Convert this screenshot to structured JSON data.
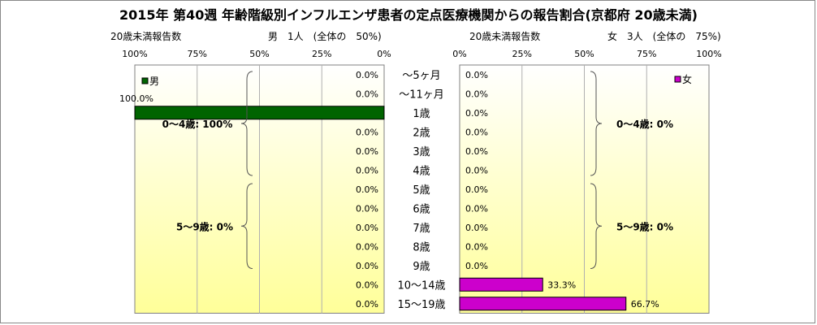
{
  "title": "2015年 第40週 年齢階級別インフルエンザ患者の定点医療機関からの報告割合(京都府 20歳未満)",
  "male_header": {
    "left": "20歳未満報告数",
    "center": "男　1人　(全体の　50%)"
  },
  "female_header": {
    "left": "20歳未満報告数",
    "center": "女　3人　(全体の　75%)"
  },
  "colors": {
    "male": "#006400",
    "female": "#cc00cc",
    "plot_top": "#ffffff",
    "plot_bottom": "#ffff99"
  },
  "chart_data": {
    "type": "bar",
    "categories": [
      "〜5ヶ月",
      "〜11ヶ月",
      "1歳",
      "2歳",
      "3歳",
      "4歳",
      "5歳",
      "6歳",
      "7歳",
      "8歳",
      "9歳",
      "10〜14歳",
      "15〜19歳"
    ],
    "x_tick_labels": [
      "0%",
      "25%",
      "50%",
      "75%",
      "100%"
    ],
    "xlim": [
      0,
      100
    ],
    "series": [
      {
        "name": "男",
        "values": [
          0,
          0,
          100,
          0,
          0,
          0,
          0,
          0,
          0,
          0,
          0,
          0,
          0
        ],
        "labels": [
          "0.0%",
          "0.0%",
          "100.0%",
          "0.0%",
          "0.0%",
          "0.0%",
          "0.0%",
          "0.0%",
          "0.0%",
          "0.0%",
          "0.0%",
          "0.0%",
          "0.0%"
        ],
        "annotations": [
          "0〜4歳: 100%",
          "5〜9歳: 0%"
        ]
      },
      {
        "name": "女",
        "values": [
          0,
          0,
          0,
          0,
          0,
          0,
          0,
          0,
          0,
          0,
          0,
          33.3,
          66.7
        ],
        "labels": [
          "0.0%",
          "0.0%",
          "0.0%",
          "0.0%",
          "0.0%",
          "0.0%",
          "0.0%",
          "0.0%",
          "0.0%",
          "0.0%",
          "0.0%",
          "33.3%",
          "66.7%"
        ],
        "annotations": [
          "0〜4歳: 0%",
          "5〜9歳: 0%"
        ]
      }
    ]
  }
}
